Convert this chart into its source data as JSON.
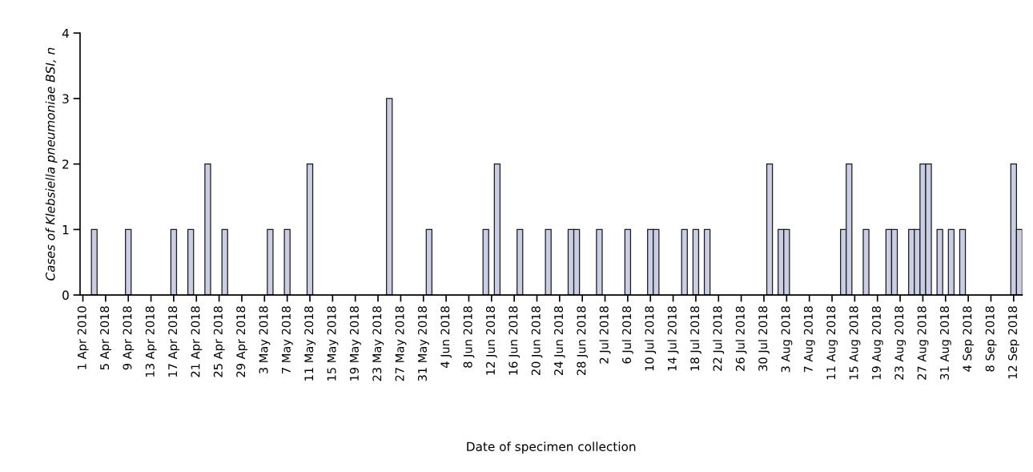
{
  "chart_data": {
    "type": "bar",
    "xlabel": "Date of specimen collection",
    "ylabel": "Cases of Klebsiella pneumoniae BSI, n",
    "categories": [
      "1 Apr 2010",
      null,
      null,
      null,
      "5 Apr 2018",
      null,
      null,
      null,
      "9 Apr 2018",
      null,
      null,
      null,
      "13 Apr 2018",
      null,
      null,
      null,
      "17 Apr 2018",
      null,
      null,
      null,
      "21 Apr 2018",
      null,
      null,
      null,
      "25 Apr 2018",
      null,
      null,
      null,
      "29 Apr 2018",
      null,
      null,
      null,
      "3 May 2018",
      null,
      null,
      null,
      "7 May 2018",
      null,
      null,
      null,
      "11 May 2018",
      null,
      null,
      null,
      "15 May 2018",
      null,
      null,
      null,
      "19 May 2018",
      null,
      null,
      null,
      "23 May 2018",
      null,
      null,
      null,
      "27 May 2018",
      null,
      null,
      null,
      "31 May 2018",
      null,
      null,
      null,
      "4 Jun 2018",
      null,
      null,
      null,
      "8 Jun 2018",
      null,
      null,
      null,
      "12 Jun 2018",
      null,
      null,
      null,
      "16 Jun 2018",
      null,
      null,
      null,
      "20 Jun 2018",
      null,
      null,
      null,
      "24 Jun 2018",
      null,
      null,
      null,
      "28 Jun 2018",
      null,
      null,
      null,
      "2 Jul 2018",
      null,
      null,
      null,
      "6 Jul 2018",
      null,
      null,
      null,
      "10 Jul 2018",
      null,
      null,
      null,
      "14 Jul 2018",
      null,
      null,
      null,
      "18 Jul 2018",
      null,
      null,
      null,
      "22 Jul 2018",
      null,
      null,
      null,
      "26 Jul 2018",
      null,
      null,
      null,
      "30 Jul 2018",
      null,
      null,
      null,
      "3 Aug 2018",
      null,
      null,
      null,
      "7 Aug 2018",
      null,
      null,
      null,
      "11 Aug 2018",
      null,
      null,
      null,
      "15 Aug 2018",
      null,
      null,
      null,
      "19 Aug 2018",
      null,
      null,
      null,
      "23 Aug 2018",
      null,
      null,
      null,
      "27 Aug 2018",
      null,
      null,
      null,
      "31 Aug 2018",
      null,
      null,
      null,
      "4 Sep 2018",
      null,
      null,
      null,
      "8 Sep 2018",
      null,
      null,
      null,
      "12 Sep 2018",
      null
    ],
    "values": [
      0,
      0,
      1,
      0,
      0,
      0,
      0,
      0,
      1,
      0,
      0,
      0,
      0,
      0,
      0,
      0,
      1,
      0,
      0,
      1,
      0,
      0,
      2,
      0,
      0,
      1,
      0,
      0,
      0,
      0,
      0,
      0,
      0,
      1,
      0,
      0,
      1,
      0,
      0,
      0,
      2,
      0,
      0,
      0,
      0,
      0,
      0,
      0,
      0,
      0,
      0,
      0,
      0,
      0,
      3,
      0,
      0,
      0,
      0,
      0,
      0,
      1,
      0,
      0,
      0,
      0,
      0,
      0,
      0,
      0,
      0,
      1,
      0,
      2,
      0,
      0,
      0,
      1,
      0,
      0,
      0,
      0,
      1,
      0,
      0,
      0,
      1,
      1,
      0,
      0,
      0,
      1,
      0,
      0,
      0,
      0,
      1,
      0,
      0,
      0,
      1,
      1,
      0,
      0,
      0,
      0,
      1,
      0,
      1,
      0,
      1,
      0,
      0,
      0,
      0,
      0,
      0,
      0,
      0,
      0,
      0,
      2,
      0,
      1,
      1,
      0,
      0,
      0,
      0,
      0,
      0,
      0,
      0,
      0,
      1,
      2,
      0,
      0,
      1,
      0,
      0,
      0,
      1,
      1,
      0,
      0,
      1,
      1,
      2,
      2,
      0,
      1,
      0,
      1,
      0,
      1,
      0,
      0,
      0,
      0,
      0,
      0,
      0,
      0,
      2,
      1
    ],
    "color": "#c9cee4",
    "ylim": [
      0,
      4
    ],
    "yticks": [
      0,
      1,
      2,
      3,
      4
    ],
    "grid": false,
    "legend": false
  }
}
